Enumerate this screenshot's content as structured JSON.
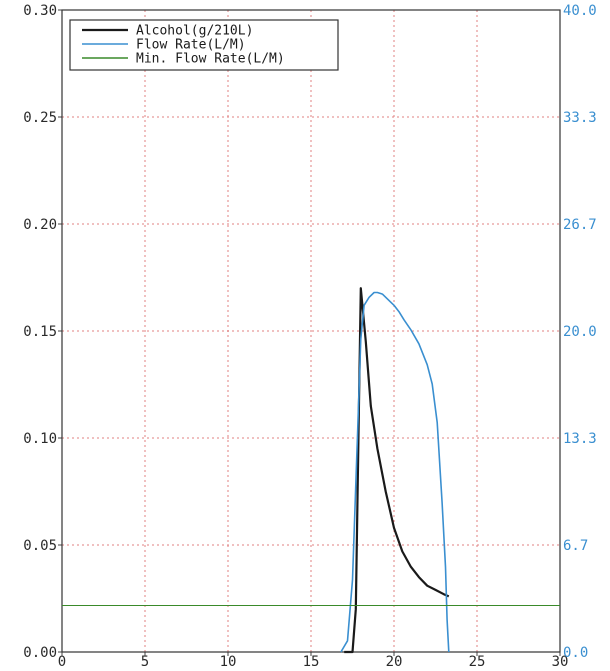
{
  "chart_data": {
    "type": "line",
    "title": "",
    "xlabel": "",
    "ylabel": "",
    "xlim": [
      0,
      30
    ],
    "ylim": [
      0,
      0.3
    ],
    "y2lim": [
      0,
      40.0
    ],
    "grid": true,
    "legend_position": "top-left",
    "x_ticks": [
      "0",
      "5",
      "10",
      "15",
      "20",
      "25",
      "30"
    ],
    "y_ticks_left": [
      "0.00",
      "0.05",
      "0.10",
      "0.15",
      "0.20",
      "0.25",
      "0.30"
    ],
    "y_ticks_right": [
      "0.0",
      "6.7",
      "13.3",
      "20.0",
      "26.7",
      "33.3",
      "40.0"
    ],
    "series": [
      {
        "name": "Alcohol(g/210L)",
        "axis": "left",
        "color": "#1a1a1a",
        "x": [
          17.0,
          17.5,
          17.7,
          17.9,
          18.0,
          18.3,
          18.6,
          19.0,
          19.5,
          20.0,
          20.5,
          21.0,
          21.5,
          22.0,
          22.5,
          23.0,
          23.3
        ],
        "y": [
          0.0,
          0.0,
          0.02,
          0.12,
          0.17,
          0.145,
          0.115,
          0.095,
          0.075,
          0.058,
          0.047,
          0.04,
          0.035,
          0.031,
          0.029,
          0.027,
          0.026
        ]
      },
      {
        "name": "Flow Rate(L/M)",
        "axis": "right",
        "color": "#3a8fd0",
        "x": [
          16.8,
          17.2,
          17.5,
          17.8,
          18.0,
          18.2,
          18.5,
          18.8,
          19.0,
          19.3,
          19.6,
          20.0,
          20.3,
          20.6,
          21.0,
          21.5,
          22.0,
          22.3,
          22.6,
          22.9,
          23.1,
          23.2,
          23.3
        ],
        "y": [
          0.0,
          0.7,
          4.5,
          13.5,
          19.5,
          21.6,
          22.1,
          22.4,
          22.4,
          22.3,
          22.0,
          21.6,
          21.2,
          20.7,
          20.1,
          19.2,
          17.9,
          16.7,
          14.3,
          9.3,
          5.3,
          2.0,
          0.0
        ]
      },
      {
        "name": "Min. Flow Rate(L/M)",
        "axis": "right",
        "color": "#3a8a2a",
        "x": [
          0,
          30
        ],
        "y": [
          2.9,
          2.9
        ]
      }
    ]
  }
}
